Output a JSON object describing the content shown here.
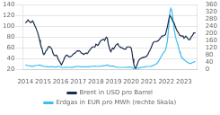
{
  "chart_data": {
    "type": "line",
    "x": [
      2014.0,
      2014.05,
      2014.1,
      2014.15,
      2014.2,
      2014.25,
      2014.3,
      2014.35,
      2014.4,
      2014.45,
      2014.5,
      2014.55,
      2014.6,
      2014.65,
      2014.7,
      2014.75,
      2014.8,
      2014.85,
      2014.9,
      2014.95,
      2015.0,
      2015.05,
      2015.1,
      2015.15,
      2015.2,
      2015.25,
      2015.3,
      2015.35,
      2015.4,
      2015.45,
      2015.5,
      2015.55,
      2015.6,
      2015.65,
      2015.7,
      2015.75,
      2015.8,
      2015.85,
      2015.9,
      2015.95,
      2016.0,
      2016.05,
      2016.1,
      2016.15,
      2016.2,
      2016.25,
      2016.3,
      2016.35,
      2016.4,
      2016.45,
      2016.5,
      2016.55,
      2016.6,
      2016.65,
      2016.7,
      2016.75,
      2016.8,
      2016.85,
      2016.9,
      2016.95,
      2017.0,
      2017.05,
      2017.1,
      2017.15,
      2017.2,
      2017.25,
      2017.3,
      2017.35,
      2017.4,
      2017.45,
      2017.5,
      2017.55,
      2017.6,
      2017.65,
      2017.7,
      2017.75,
      2017.8,
      2017.85,
      2017.9,
      2017.95,
      2018.0,
      2018.05,
      2018.1,
      2018.15,
      2018.2,
      2018.25,
      2018.3,
      2018.35,
      2018.4,
      2018.45,
      2018.5,
      2018.55,
      2018.6,
      2018.65,
      2018.7,
      2018.75,
      2018.8,
      2018.85,
      2018.9,
      2018.95,
      2019.0,
      2019.05,
      2019.1,
      2019.15,
      2019.2,
      2019.25,
      2019.3,
      2019.35,
      2019.4,
      2019.45,
      2019.5,
      2019.55,
      2019.6,
      2019.65,
      2019.7,
      2019.75,
      2019.8,
      2019.85,
      2019.9,
      2019.95,
      2020.0,
      2020.05,
      2020.1,
      2020.15,
      2020.2,
      2020.25,
      2020.3,
      2020.35,
      2020.4,
      2020.45,
      2020.5,
      2020.55,
      2020.6,
      2020.65,
      2020.7,
      2020.75,
      2020.8,
      2020.85,
      2020.9,
      2020.95,
      2021.0,
      2021.05,
      2021.1,
      2021.15,
      2021.2,
      2021.25,
      2021.3,
      2021.35,
      2021.4,
      2021.45,
      2021.5,
      2021.55,
      2021.6,
      2021.65,
      2021.7,
      2021.75,
      2021.8,
      2021.85,
      2021.9,
      2021.95,
      2022.0,
      2022.05,
      2022.1,
      2022.15,
      2022.2,
      2022.25,
      2022.3,
      2022.35,
      2022.4,
      2022.45,
      2022.5,
      2022.55,
      2022.6,
      2022.65,
      2022.7,
      2022.75,
      2022.8,
      2022.85,
      2022.9,
      2022.95,
      2023.0,
      2023.05,
      2023.1,
      2023.15,
      2023.2,
      2023.25,
      2023.3,
      2023.35,
      2023.4,
      2023.45,
      2023.5,
      2023.55,
      2023.6,
      2023.65
    ],
    "series": [
      {
        "name": "Brent in USD pro Barrel",
        "color": "#1a2c4e",
        "values": [
          106,
          108,
          110,
          112,
          110,
          108,
          107,
          108,
          110,
          108,
          104,
          100,
          97,
          92,
          88,
          82,
          75,
          68,
          62,
          58,
          50,
          48,
          50,
          54,
          56,
          58,
          62,
          63,
          62,
          60,
          58,
          52,
          48,
          46,
          46,
          47,
          45,
          40,
          37,
          35,
          31,
          29,
          33,
          36,
          40,
          44,
          46,
          47,
          46,
          44,
          44,
          44,
          45,
          46,
          48,
          50,
          50,
          52,
          54,
          55,
          54,
          55,
          54,
          52,
          50,
          50,
          48,
          49,
          50,
          51,
          50,
          51,
          54,
          56,
          58,
          60,
          62,
          62,
          62,
          62,
          67,
          66,
          65,
          66,
          70,
          72,
          74,
          75,
          76,
          76,
          74,
          78,
          80,
          78,
          68,
          62,
          56,
          53,
          57,
          60,
          58,
          60,
          64,
          66,
          67,
          68,
          64,
          62,
          62,
          60,
          60,
          59,
          58,
          58,
          58,
          62,
          62,
          62,
          62,
          62,
          60,
          52,
          40,
          30,
          25,
          23,
          26,
          30,
          35,
          38,
          40,
          41,
          42,
          42,
          43,
          43,
          44,
          44,
          46,
          48,
          52,
          55,
          58,
          62,
          66,
          70,
          71,
          72,
          72,
          72,
          73,
          74,
          76,
          78,
          80,
          82,
          82,
          83,
          84,
          85,
          92,
          98,
          106,
          115,
          120,
          118,
          115,
          110,
          108,
          105,
          100,
          96,
          92,
          90,
          87,
          84,
          83,
          82,
          82,
          82,
          78,
          80,
          82,
          80,
          78,
          76,
          75,
          76,
          80,
          82,
          84,
          88,
          88,
          88
        ]
      },
      {
        "name": "Erdgas in EUR pro MWh (rechte Skala)",
        "color": "#3bbfef",
        "axis": "y2",
        "values": [
          26,
          25,
          24,
          23,
          22,
          21,
          20,
          20,
          19,
          20,
          21,
          22,
          23,
          24,
          24,
          25,
          26,
          26,
          24,
          22,
          20,
          18,
          18,
          17,
          17,
          16,
          16,
          16,
          16,
          16,
          16,
          16,
          16,
          15,
          15,
          15,
          16,
          17,
          18,
          18,
          14,
          13,
          12,
          13,
          13,
          14,
          14,
          14,
          13,
          13,
          13,
          14,
          14,
          14,
          14,
          15,
          16,
          17,
          18,
          19,
          18,
          17,
          17,
          16,
          16,
          16,
          16,
          16,
          16,
          16,
          16,
          16,
          16,
          17,
          17,
          18,
          19,
          20,
          20,
          20,
          20,
          19,
          18,
          18,
          19,
          20,
          20,
          21,
          22,
          22,
          22,
          24,
          25,
          26,
          25,
          22,
          20,
          20,
          20,
          21,
          20,
          18,
          16,
          15,
          14,
          13,
          13,
          13,
          13,
          13,
          13,
          13,
          13,
          13,
          13,
          14,
          14,
          14,
          15,
          15,
          14,
          12,
          10,
          8,
          6,
          6,
          7,
          8,
          9,
          10,
          11,
          12,
          13,
          14,
          15,
          15,
          16,
          17,
          18,
          18,
          18,
          18,
          18,
          20,
          22,
          24,
          26,
          28,
          30,
          34,
          40,
          46,
          55,
          64,
          72,
          80,
          88,
          95,
          100,
          110,
          130,
          155,
          200,
          260,
          320,
          340,
          330,
          300,
          260,
          220,
          190,
          170,
          155,
          140,
          120,
          100,
          85,
          72,
          65,
          60,
          55,
          52,
          48,
          44,
          40,
          38,
          36,
          34,
          36,
          38,
          40,
          42,
          44,
          46
        ]
      }
    ],
    "xlim": [
      2013.85,
      2023.75
    ],
    "xticks": [
      2014,
      2015,
      2016,
      2017,
      2018,
      2019,
      2020,
      2021,
      2022,
      2023
    ],
    "ylim": [
      20,
      140
    ],
    "yticks": [
      20,
      40,
      60,
      80,
      100,
      120,
      140
    ],
    "y2lim": [
      0,
      360
    ],
    "y2ticks": [
      0,
      40,
      80,
      120,
      160,
      200,
      240,
      280,
      320,
      360
    ],
    "grid": true,
    "legend": "bottom"
  }
}
